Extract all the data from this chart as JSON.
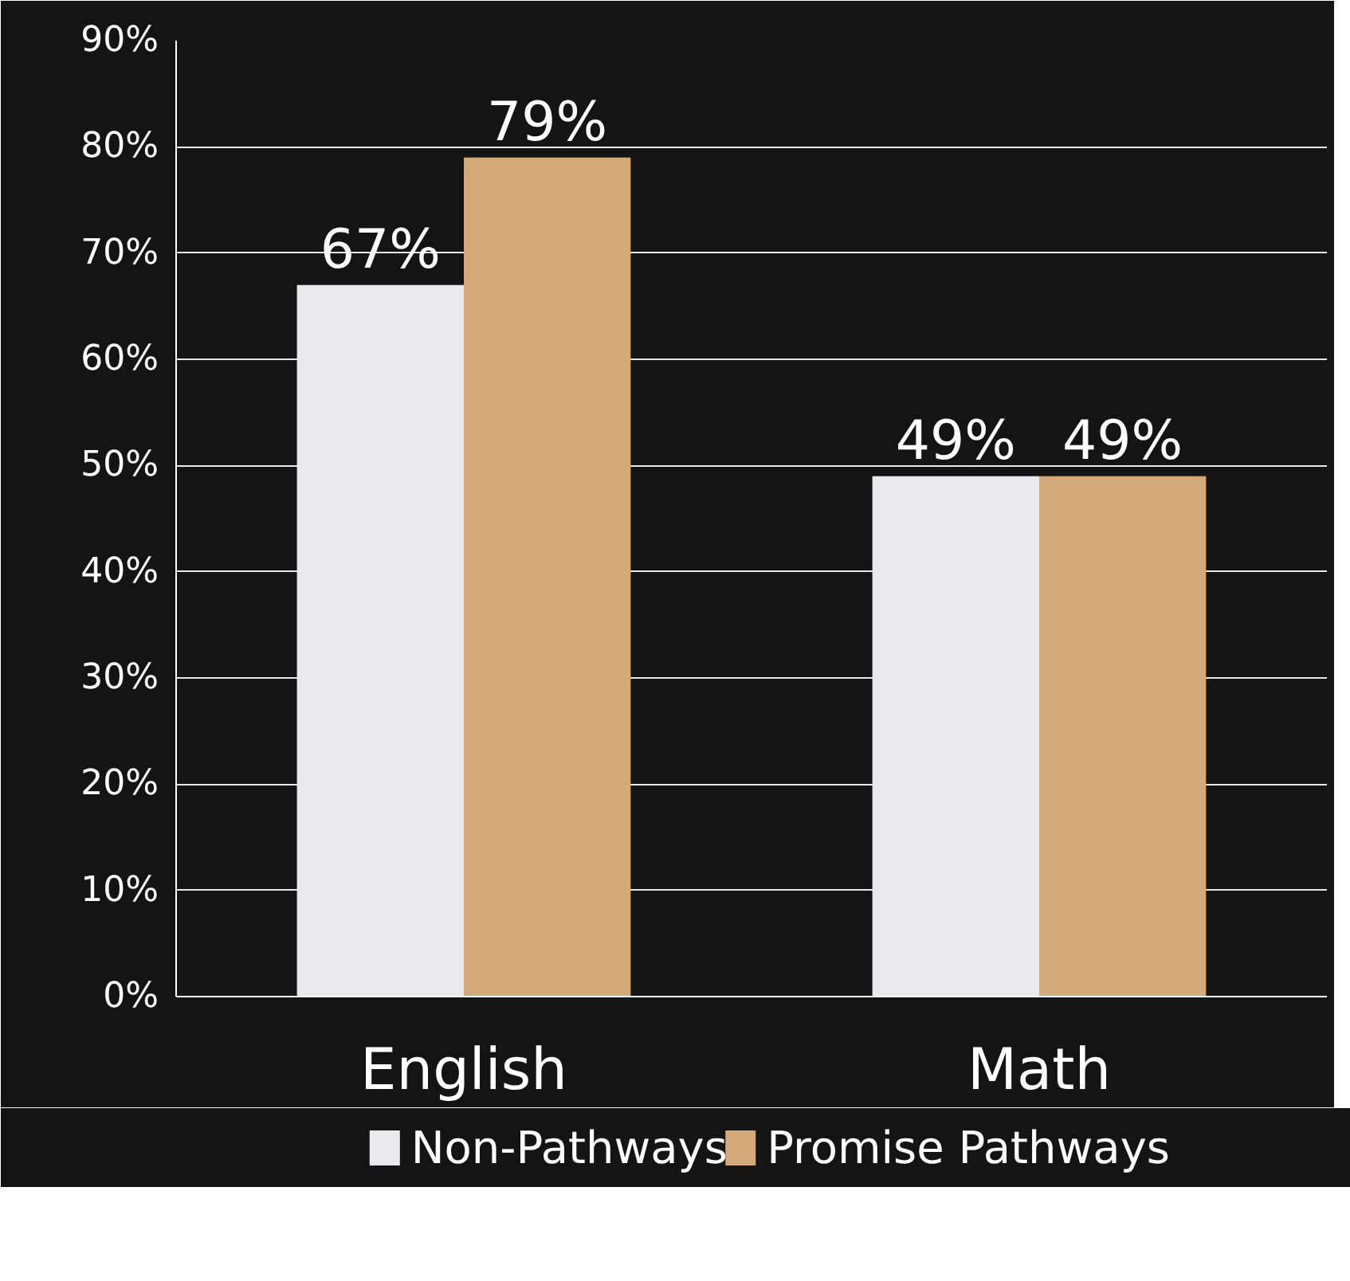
{
  "chart_data": {
    "type": "bar",
    "categories": [
      "English",
      "Math"
    ],
    "series": [
      {
        "name": "Non-Pathways",
        "color": "#e9e9eb",
        "values": [
          67,
          49
        ]
      },
      {
        "name": "Promise Pathways",
        "color": "#d4a97a",
        "values": [
          79,
          49
        ]
      }
    ],
    "ylim": [
      0,
      90
    ],
    "yticks": [
      {
        "value": 0,
        "label": "0%"
      },
      {
        "value": 10,
        "label": "10%"
      },
      {
        "value": 20,
        "label": "20%"
      },
      {
        "value": 30,
        "label": "30%"
      },
      {
        "value": 40,
        "label": "40%"
      },
      {
        "value": 50,
        "label": "50%"
      },
      {
        "value": 60,
        "label": "60%"
      },
      {
        "value": 70,
        "label": "70%"
      },
      {
        "value": 80,
        "label": "80%"
      },
      {
        "value": 90,
        "label": "90%"
      }
    ],
    "value_labels": [
      [
        "67%",
        "49%"
      ],
      [
        "79%",
        "49%"
      ]
    ],
    "grid": "y",
    "legend": "bottom"
  }
}
